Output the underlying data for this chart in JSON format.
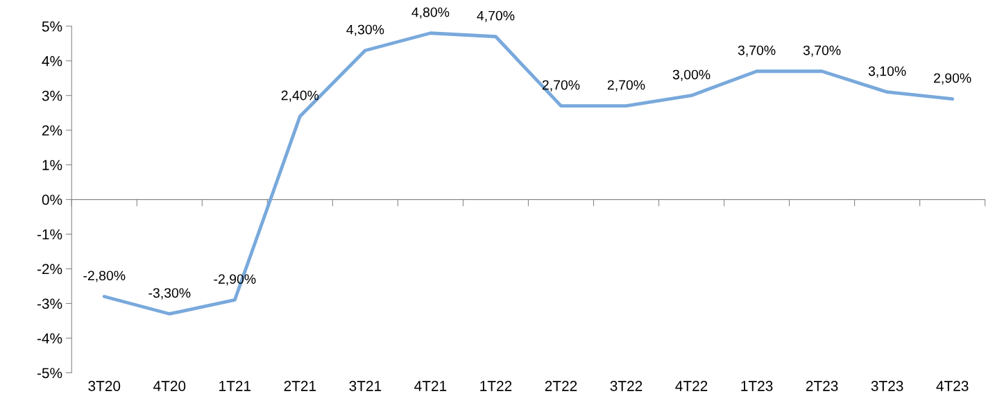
{
  "chart_data": {
    "type": "line",
    "categories": [
      "3T20",
      "4T20",
      "1T21",
      "2T21",
      "3T21",
      "4T21",
      "1T22",
      "2T22",
      "3T22",
      "4T22",
      "1T23",
      "2T23",
      "3T23",
      "4T23"
    ],
    "series": [
      {
        "color": "#79a9dc",
        "values": [
          -2.8,
          -3.3,
          -2.9,
          2.4,
          4.3,
          4.8,
          4.7,
          2.7,
          2.7,
          3.0,
          3.7,
          3.7,
          3.1,
          2.9
        ],
        "value_labels": [
          "-2,80%",
          "-3,30%",
          "-2,90%",
          "2,40%",
          "4,30%",
          "4,80%",
          "4,70%",
          "2,70%",
          "2,70%",
          "3,00%",
          "3,70%",
          "3,70%",
          "3,10%",
          "2,90%"
        ]
      }
    ],
    "ylim": [
      -5,
      5
    ],
    "yticks": [
      {
        "value": -5,
        "label": "-5%"
      },
      {
        "value": -4,
        "label": "-4%"
      },
      {
        "value": -3,
        "label": "-3%"
      },
      {
        "value": -2,
        "label": "-2%"
      },
      {
        "value": -1,
        "label": "-1%"
      },
      {
        "value": 0,
        "label": "0%"
      },
      {
        "value": 1,
        "label": "1%"
      },
      {
        "value": 2,
        "label": "2%"
      },
      {
        "value": 3,
        "label": "3%"
      },
      {
        "value": 4,
        "label": "4%"
      },
      {
        "value": 5,
        "label": "5%"
      }
    ],
    "ref_lines": [
      {
        "axis": "y",
        "value": 0,
        "color": "#888888",
        "line_style": "solid"
      }
    ],
    "grid": false,
    "marker": "none",
    "line_style": "solid"
  }
}
